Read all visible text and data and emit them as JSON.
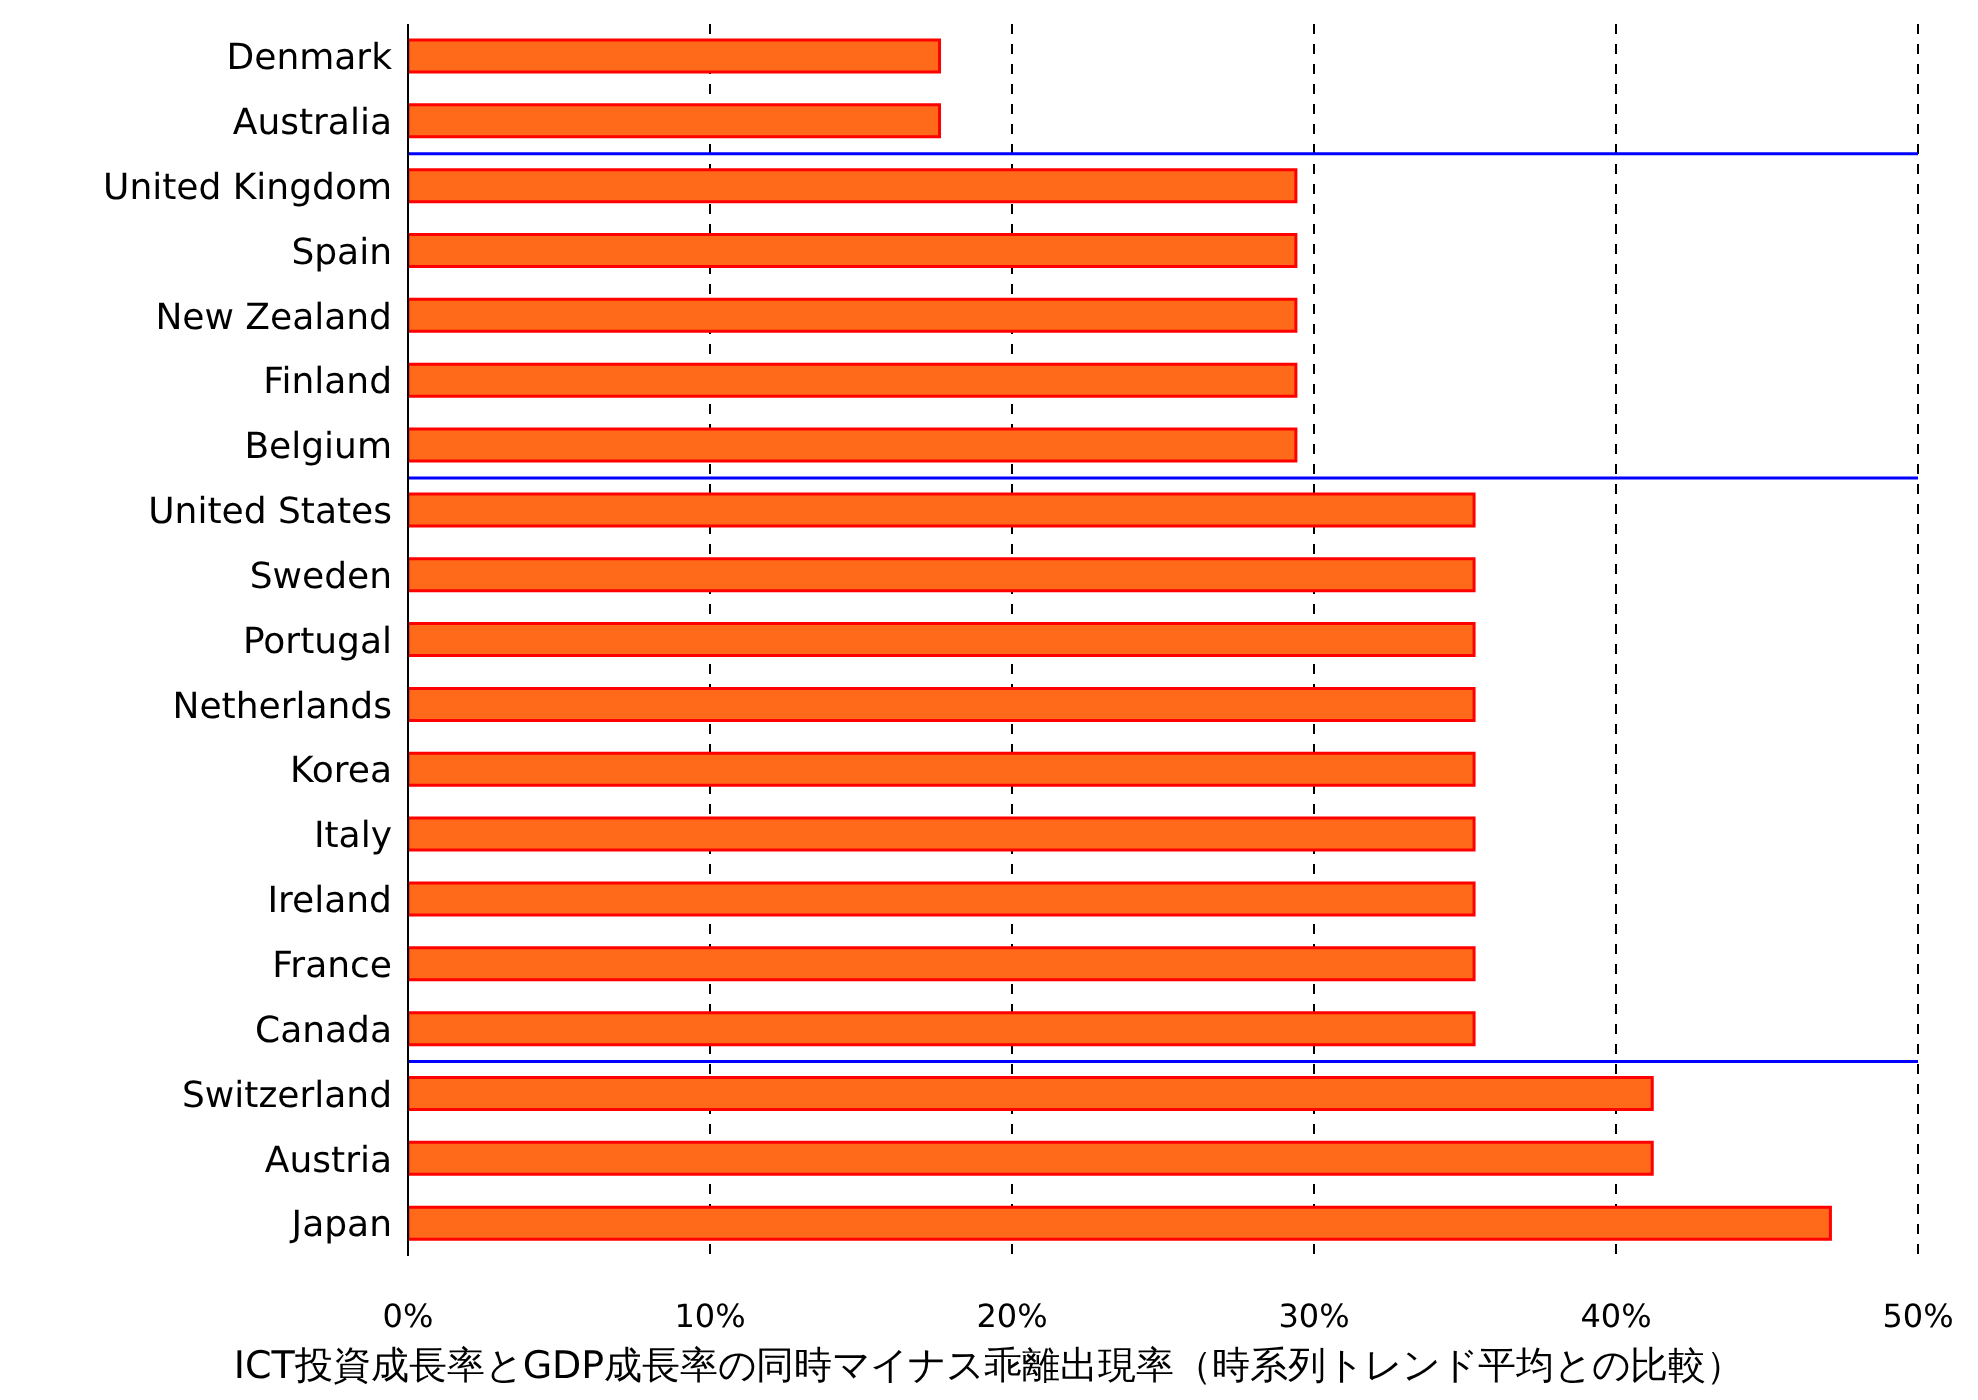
{
  "chart_data": {
    "type": "bar",
    "orientation": "horizontal",
    "title": "ICT投資成長率とGDP成長率の同時マイナス乖離出現率（時系列トレンド平均との比較）",
    "categories": [
      "Denmark",
      "Australia",
      "United Kingdom",
      "Spain",
      "New Zealand",
      "Finland",
      "Belgium",
      "United States",
      "Sweden",
      "Portugal",
      "Netherlands",
      "Korea",
      "Italy",
      "Ireland",
      "France",
      "Canada",
      "Switzerland",
      "Austria",
      "Japan"
    ],
    "values": [
      17.6,
      17.6,
      29.4,
      29.4,
      29.4,
      29.4,
      29.4,
      35.3,
      35.3,
      35.3,
      35.3,
      35.3,
      35.3,
      35.3,
      35.3,
      35.3,
      41.2,
      41.2,
      47.1
    ],
    "color": "#ff6a1a",
    "xlim": [
      0,
      50
    ],
    "xticks": [
      {
        "value": 0,
        "label": "0%"
      },
      {
        "value": 10,
        "label": "10%"
      },
      {
        "value": 20,
        "label": "20%"
      },
      {
        "value": 30,
        "label": "30%"
      },
      {
        "value": 40,
        "label": "40%"
      },
      {
        "value": 50,
        "label": "50%"
      }
    ],
    "grid": "x"
  }
}
